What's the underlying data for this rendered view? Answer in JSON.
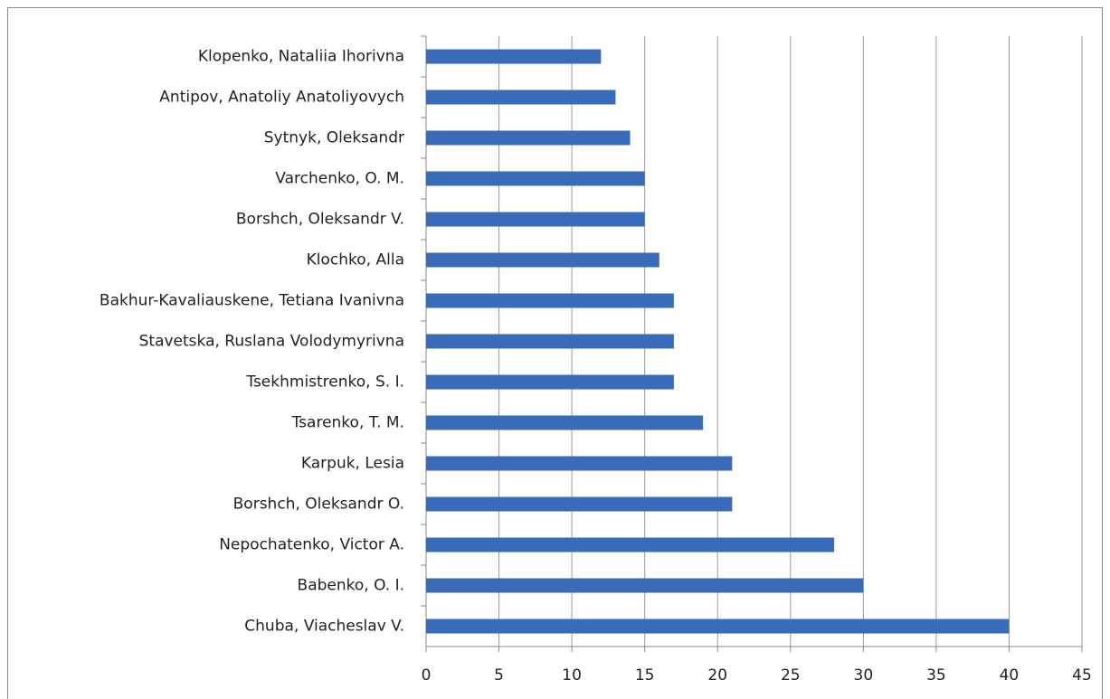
{
  "chart_data": {
    "type": "bar",
    "orientation": "horizontal",
    "categories": [
      "Klopenko, Nataliia Ihorivna",
      "Antipov, Anatoliy Anatoliyovych",
      "Sytnyk, Oleksandr",
      "Varchenko, O. M.",
      "Borshch, Oleksandr V.",
      "Klochko, Alla",
      "Bakhur-Kavaliauskene, Tetiana Ivanivna",
      "Stavetska, Ruslana Volodymyrivna",
      "Tsekhmistrenko, S. I.",
      "Tsarenko, T. M.",
      "Karpuk, Lesia",
      "Borshch, Oleksandr O.",
      "Nepochatenko, Victor A.",
      "Babenko, O. I.",
      "Chuba, Viacheslav V."
    ],
    "values": [
      12,
      13,
      14,
      15,
      15,
      16,
      17,
      17,
      17,
      19,
      21,
      21,
      28,
      30,
      40
    ],
    "color": "#3a6bb8",
    "xlim": [
      0,
      45
    ],
    "xticks": [
      0,
      5,
      10,
      15,
      20,
      25,
      30,
      35,
      40,
      45
    ],
    "grid": true
  }
}
